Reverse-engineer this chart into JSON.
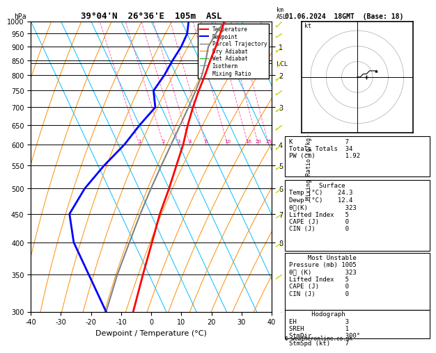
{
  "title": "39°04'N  26°36'E  105m  ASL",
  "date_str": "01.06.2024  18GMT  (Base: 18)",
  "xlabel": "Dewpoint / Temperature (°C)",
  "pressure_levels": [
    300,
    350,
    400,
    450,
    500,
    550,
    600,
    650,
    700,
    750,
    800,
    850,
    900,
    950,
    1000
  ],
  "pmin": 300,
  "pmax": 1000,
  "temp_xlim": [
    -40,
    40
  ],
  "skew_factor": 45.0,
  "km_labels": [
    1,
    2,
    3,
    4,
    5,
    6,
    7,
    8
  ],
  "km_pressures": [
    900,
    800,
    700,
    600,
    550,
    500,
    450,
    400
  ],
  "lcl_pressure": 840,
  "temp_profile_p": [
    1000,
    950,
    900,
    850,
    800,
    750,
    700,
    650,
    600,
    550,
    500,
    450,
    400,
    350,
    300
  ],
  "temp_profile_t": [
    24.3,
    21.0,
    17.5,
    13.5,
    9.5,
    5.0,
    0.5,
    -4.0,
    -8.5,
    -14.0,
    -20.0,
    -27.0,
    -34.0,
    -42.0,
    -51.0
  ],
  "dewp_profile_p": [
    1000,
    950,
    900,
    850,
    800,
    750,
    700,
    650,
    600,
    550,
    500,
    450,
    400,
    350,
    300
  ],
  "dewp_profile_t": [
    12.4,
    10.0,
    6.0,
    1.0,
    -4.0,
    -10.0,
    -12.0,
    -20.0,
    -28.0,
    -38.0,
    -48.0,
    -57.0,
    -60.0,
    -60.0,
    -60.0
  ],
  "parcel_profile_p": [
    1000,
    950,
    900,
    850,
    800,
    750,
    700,
    650,
    600,
    550,
    500,
    450,
    400,
    350,
    300
  ],
  "parcel_profile_t": [
    24.3,
    19.5,
    15.0,
    12.0,
    8.5,
    4.0,
    -1.0,
    -6.5,
    -12.5,
    -19.0,
    -26.0,
    -33.5,
    -41.5,
    -50.5,
    -60.0
  ],
  "colors": {
    "temperature": "#ff0000",
    "dewpoint": "#0000ff",
    "parcel": "#808080",
    "dry_adiabat": "#ff8c00",
    "wet_adiabat": "#00bb00",
    "isotherm": "#00bfff",
    "mixing_ratio": "#ff69b4",
    "isobar": "#000000"
  },
  "mixing_ratio_vals": [
    1,
    2,
    3,
    4,
    6,
    10,
    16,
    20,
    25
  ],
  "indices": {
    "K": 7,
    "Totals Totals": 34,
    "PW (cm)": 1.92,
    "Surface Temp (C)": 24.3,
    "Surface Dewp (C)": 12.4,
    "theta_e (K)": 323,
    "Lifted Index": 5,
    "CAPE (J)": 0,
    "CIN (J)": 0,
    "MU Pressure (mb)": 1005,
    "MU theta_e (K)": 323,
    "MU LI": 5,
    "MU CAPE (J)": 0,
    "MU CIN (J)": 0,
    "EH": 3,
    "SREH": 1,
    "StmDir": "300°",
    "StmSpd (kt)": 7
  },
  "wind_barbs": [
    {
      "p": 1000,
      "u": 2,
      "v": 2
    },
    {
      "p": 950,
      "u": 3,
      "v": 2
    },
    {
      "p": 900,
      "u": 2,
      "v": 2
    },
    {
      "p": 850,
      "u": 2,
      "v": 3
    },
    {
      "p": 800,
      "u": 3,
      "v": 3
    },
    {
      "p": 750,
      "u": 4,
      "v": 3
    },
    {
      "p": 700,
      "u": 4,
      "v": 3
    },
    {
      "p": 650,
      "u": 5,
      "v": 4
    },
    {
      "p": 600,
      "u": 5,
      "v": 4
    },
    {
      "p": 550,
      "u": 6,
      "v": 4
    },
    {
      "p": 500,
      "u": 7,
      "v": 5
    },
    {
      "p": 450,
      "u": 8,
      "v": 5
    },
    {
      "p": 400,
      "u": 9,
      "v": 6
    },
    {
      "p": 350,
      "u": 10,
      "v": 7
    },
    {
      "p": 300,
      "u": 12,
      "v": 8
    }
  ]
}
